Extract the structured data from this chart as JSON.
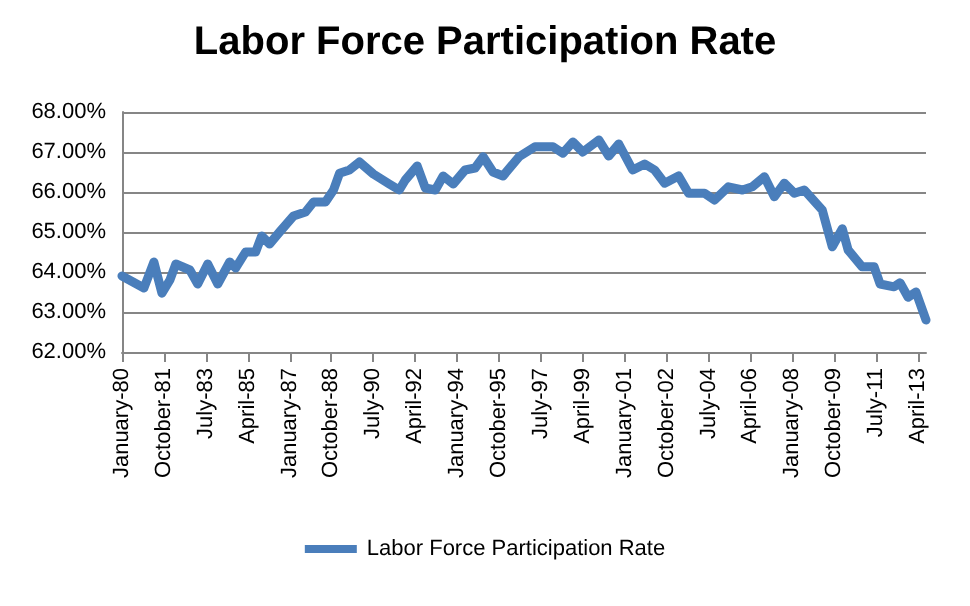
{
  "chart_data": {
    "type": "line",
    "title": "Labor Force Participation Rate",
    "x": [
      "1980-01",
      "1980-12",
      "1981-05",
      "1981-09",
      "1982-01",
      "1982-04",
      "1982-11",
      "1983-03",
      "1983-08",
      "1984-01",
      "1984-07",
      "1984-10",
      "1985-03",
      "1985-08",
      "1985-11",
      "1986-03",
      "1986-08",
      "1987-03",
      "1987-09",
      "1988-01",
      "1988-07",
      "1988-11",
      "1989-02",
      "1989-07",
      "1989-12",
      "1990-07",
      "1991-03",
      "1991-08",
      "1991-11",
      "1992-05",
      "1992-09",
      "1993-02",
      "1993-06",
      "1993-11",
      "1994-05",
      "1994-10",
      "1995-02",
      "1995-07",
      "1995-12",
      "1996-08",
      "1997-04",
      "1998-01",
      "1998-06",
      "1998-11",
      "1999-04",
      "1999-12",
      "2000-05",
      "2000-10",
      "2001-05",
      "2001-11",
      "2002-04",
      "2002-09",
      "2003-04",
      "2003-09",
      "2004-05",
      "2004-10",
      "2005-05",
      "2005-12",
      "2006-05",
      "2006-11",
      "2007-04",
      "2007-09",
      "2008-02",
      "2008-07",
      "2009-04",
      "2009-09",
      "2010-02",
      "2010-05",
      "2010-12",
      "2011-06",
      "2011-09",
      "2012-04",
      "2012-07",
      "2012-11",
      "2013-03",
      "2013-08"
    ],
    "series": [
      {
        "name": "Labor Force Participation Rate",
        "color": "#4a7ebb",
        "values": [
          63.9,
          63.6,
          64.25,
          63.47,
          63.8,
          64.2,
          64.05,
          63.7,
          64.2,
          63.7,
          64.25,
          64.1,
          64.5,
          64.5,
          64.9,
          64.7,
          65.0,
          65.4,
          65.5,
          65.75,
          65.75,
          66.05,
          66.47,
          66.55,
          66.75,
          66.45,
          66.2,
          66.05,
          66.3,
          66.65,
          66.1,
          66.05,
          66.4,
          66.2,
          66.55,
          66.6,
          66.88,
          66.5,
          66.4,
          66.88,
          67.13,
          67.13,
          66.97,
          67.25,
          67.0,
          67.3,
          66.9,
          67.2,
          66.55,
          66.7,
          66.55,
          66.22,
          66.4,
          65.97,
          65.97,
          65.8,
          66.13,
          66.05,
          66.13,
          66.38,
          65.88,
          66.22,
          65.97,
          66.05,
          65.55,
          64.63,
          65.08,
          64.55,
          64.13,
          64.13,
          63.7,
          63.63,
          63.73,
          63.37,
          63.5,
          62.8
        ]
      }
    ],
    "xlim": [
      "1980-01",
      "2013-08"
    ],
    "xticks": [
      {
        "value": "1980-01",
        "label": "January-80"
      },
      {
        "value": "1981-10",
        "label": "October-81"
      },
      {
        "value": "1983-07",
        "label": "July-83"
      },
      {
        "value": "1985-04",
        "label": "April-85"
      },
      {
        "value": "1987-01",
        "label": "January-87"
      },
      {
        "value": "1988-10",
        "label": "October-88"
      },
      {
        "value": "1990-07",
        "label": "July-90"
      },
      {
        "value": "1992-04",
        "label": "April-92"
      },
      {
        "value": "1994-01",
        "label": "January-94"
      },
      {
        "value": "1995-10",
        "label": "October-95"
      },
      {
        "value": "1997-07",
        "label": "July-97"
      },
      {
        "value": "1999-04",
        "label": "April-99"
      },
      {
        "value": "2001-01",
        "label": "January-01"
      },
      {
        "value": "2002-10",
        "label": "October-02"
      },
      {
        "value": "2004-07",
        "label": "July-04"
      },
      {
        "value": "2006-04",
        "label": "April-06"
      },
      {
        "value": "2008-01",
        "label": "January-08"
      },
      {
        "value": "2009-10",
        "label": "October-09"
      },
      {
        "value": "2011-07",
        "label": "July-11"
      },
      {
        "value": "2013-04",
        "label": "April-13"
      }
    ],
    "ylim": [
      62,
      68
    ],
    "yticks": [
      {
        "value": 62,
        "label": "62.00%"
      },
      {
        "value": 63,
        "label": "63.00%"
      },
      {
        "value": 64,
        "label": "64.00%"
      },
      {
        "value": 65,
        "label": "65.00%"
      },
      {
        "value": 66,
        "label": "66.00%"
      },
      {
        "value": 67,
        "label": "67.00%"
      },
      {
        "value": 68,
        "label": "68.00%"
      }
    ],
    "grid": "y",
    "legend": "bottom",
    "marker": "none",
    "line_style": "solid"
  }
}
